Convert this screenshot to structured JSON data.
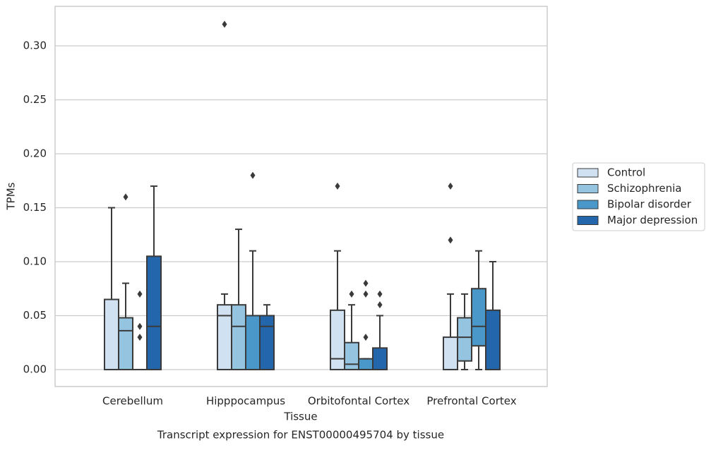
{
  "chart_data": {
    "type": "box",
    "title": "Transcript expression for ENST00000495704 by tissue",
    "xlabel": "Tissue",
    "ylabel": "TPMs",
    "categories": [
      "Cerebellum",
      "Hipppocampus",
      "Orbitofontal Cortex",
      "Prefrontal Cortex"
    ],
    "ylim": [
      -0.0157,
      0.3366
    ],
    "yticks": [
      {
        "value": 0,
        "label": "0.00"
      },
      {
        "value": 0.05,
        "label": "0.05"
      },
      {
        "value": 0.1,
        "label": "0.10"
      },
      {
        "value": 0.15,
        "label": "0.15"
      },
      {
        "value": 0.2,
        "label": "0.20"
      },
      {
        "value": 0.25,
        "label": "0.25"
      },
      {
        "value": 0.3,
        "label": "0.30"
      }
    ],
    "grid": true,
    "legend": "right",
    "series": [
      {
        "name": "Control",
        "color": "#d0e1f2",
        "whislo": [
          0,
          0,
          0,
          0
        ],
        "q1": [
          0,
          0,
          0,
          0
        ],
        "median": [
          0,
          0.05,
          0.01,
          0
        ],
        "q3": [
          0.065,
          0.06,
          0.055,
          0.03
        ],
        "whishi": [
          0.15,
          0.07,
          0.11,
          0.07
        ],
        "outliers": [
          [],
          [
            0.32
          ],
          [
            0.17
          ],
          [
            0.17,
            0.12
          ]
        ]
      },
      {
        "name": "Schizophrenia",
        "color": "#94c4df",
        "whislo": [
          0,
          0,
          0,
          0
        ],
        "q1": [
          0,
          0,
          0,
          0.008
        ],
        "median": [
          0.036,
          0.04,
          0.005,
          0.03
        ],
        "q3": [
          0.048,
          0.06,
          0.025,
          0.048
        ],
        "whishi": [
          0.08,
          0.13,
          0.06,
          0.07
        ],
        "outliers": [
          [
            0.16
          ],
          [],
          [
            0.07
          ],
          []
        ]
      },
      {
        "name": "Bipolar disorder",
        "color": "#4a98c9",
        "whislo": [
          0,
          0,
          0,
          0
        ],
        "q1": [
          0,
          0,
          0,
          0.022
        ],
        "median": [
          0,
          0.05,
          0,
          0.04
        ],
        "q3": [
          0,
          0.05,
          0.01,
          0.075
        ],
        "whishi": [
          0,
          0.11,
          0.01,
          0.11
        ],
        "outliers": [
          [
            0.07,
            0.04,
            0.03
          ],
          [
            0.18
          ],
          [
            0.08,
            0.07,
            0.03
          ],
          []
        ]
      },
      {
        "name": "Major depression",
        "color": "#2366ac",
        "whislo": [
          0,
          0,
          0,
          0
        ],
        "q1": [
          0,
          0,
          0,
          0
        ],
        "median": [
          0.04,
          0.04,
          0,
          0
        ],
        "q3": [
          0.105,
          0.05,
          0.02,
          0.055
        ],
        "whishi": [
          0.17,
          0.06,
          0.05,
          0.1
        ],
        "outliers": [
          [],
          [],
          [
            0.07,
            0.06
          ],
          []
        ]
      }
    ]
  }
}
